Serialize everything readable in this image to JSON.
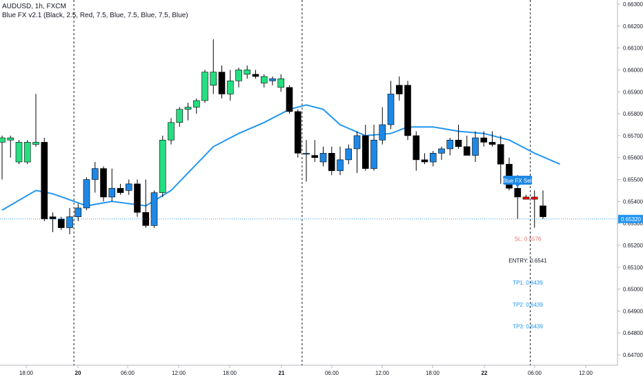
{
  "header": {
    "symbol": "AUDUSD, 1h, FXCM",
    "indicator": "Blue FX v2.1 (Black, 2.5, Red, 7.5, Blue, 7.5, Blue, 7.5, Blue)"
  },
  "chart_data": {
    "type": "candlestick",
    "ylim": [
      0.6465,
      0.6635
    ],
    "y_ticks": [
      "0.66300",
      "0.66200",
      "0.66100",
      "0.66000",
      "0.65900",
      "0.65800",
      "0.65700",
      "0.65600",
      "0.65500",
      "0.65400",
      "0.65300",
      "0.65200",
      "0.65100",
      "0.65000",
      "0.64900",
      "0.64800",
      "0.64700"
    ],
    "x_ticks": [
      "18:00",
      "20",
      "06:00",
      "12:00",
      "18:00",
      "21",
      "06:00",
      "12:00",
      "18:00",
      "22",
      "06:00",
      "12:00"
    ],
    "colors": {
      "black": "#000000",
      "blue": "#1e88e5",
      "green": "#26de81",
      "red": "#ff0000",
      "ma": "#2196f3",
      "price_line": "#2196f3",
      "sl": "#e57373",
      "entry": "#131722",
      "tp": "#2196f3"
    },
    "candles": [
      {
        "o": 0.6567,
        "h": 0.657,
        "l": 0.655,
        "c": 0.6569,
        "color": "green"
      },
      {
        "o": 0.6568,
        "h": 0.657,
        "l": 0.656,
        "c": 0.6569,
        "color": "green"
      },
      {
        "o": 0.6558,
        "h": 0.6568,
        "l": 0.6557,
        "c": 0.6567,
        "color": "green"
      },
      {
        "o": 0.6558,
        "h": 0.6568,
        "l": 0.6557,
        "c": 0.6567,
        "color": "green"
      },
      {
        "o": 0.6566,
        "h": 0.6589,
        "l": 0.6565,
        "c": 0.6567,
        "color": "green"
      },
      {
        "o": 0.6567,
        "h": 0.6569,
        "l": 0.6531,
        "c": 0.6532,
        "color": "black"
      },
      {
        "o": 0.6533,
        "h": 0.6535,
        "l": 0.6526,
        "c": 0.6532,
        "color": "black"
      },
      {
        "o": 0.6532,
        "h": 0.6533,
        "l": 0.6527,
        "c": 0.6528,
        "color": "black"
      },
      {
        "o": 0.6528,
        "h": 0.6537,
        "l": 0.6525,
        "c": 0.6533,
        "color": "blue"
      },
      {
        "o": 0.6533,
        "h": 0.6539,
        "l": 0.6531,
        "c": 0.6537,
        "color": "blue"
      },
      {
        "o": 0.6537,
        "h": 0.6551,
        "l": 0.6536,
        "c": 0.655,
        "color": "blue"
      },
      {
        "o": 0.655,
        "h": 0.6558,
        "l": 0.6544,
        "c": 0.6555,
        "color": "blue"
      },
      {
        "o": 0.6555,
        "h": 0.6556,
        "l": 0.654,
        "c": 0.6542,
        "color": "black"
      },
      {
        "o": 0.6542,
        "h": 0.6555,
        "l": 0.654,
        "c": 0.6546,
        "color": "blue"
      },
      {
        "o": 0.6546,
        "h": 0.6548,
        "l": 0.6543,
        "c": 0.6544,
        "color": "black"
      },
      {
        "o": 0.6545,
        "h": 0.655,
        "l": 0.6543,
        "c": 0.6548,
        "color": "blue"
      },
      {
        "o": 0.6548,
        "h": 0.655,
        "l": 0.6533,
        "c": 0.6535,
        "color": "black"
      },
      {
        "o": 0.6535,
        "h": 0.655,
        "l": 0.6528,
        "c": 0.6529,
        "color": "black"
      },
      {
        "o": 0.6529,
        "h": 0.6545,
        "l": 0.6528,
        "c": 0.6544,
        "color": "blue"
      },
      {
        "o": 0.6544,
        "h": 0.657,
        "l": 0.6542,
        "c": 0.6568,
        "color": "green"
      },
      {
        "o": 0.6568,
        "h": 0.6578,
        "l": 0.6566,
        "c": 0.6576,
        "color": "green"
      },
      {
        "o": 0.6576,
        "h": 0.6583,
        "l": 0.6574,
        "c": 0.6582,
        "color": "green"
      },
      {
        "o": 0.6582,
        "h": 0.6585,
        "l": 0.6577,
        "c": 0.6583,
        "color": "green"
      },
      {
        "o": 0.6583,
        "h": 0.6587,
        "l": 0.658,
        "c": 0.6586,
        "color": "green"
      },
      {
        "o": 0.6586,
        "h": 0.66,
        "l": 0.6585,
        "c": 0.6599,
        "color": "green"
      },
      {
        "o": 0.6593,
        "h": 0.6614,
        "l": 0.6589,
        "c": 0.6599,
        "color": "green"
      },
      {
        "o": 0.6599,
        "h": 0.6602,
        "l": 0.6587,
        "c": 0.6589,
        "color": "black"
      },
      {
        "o": 0.6589,
        "h": 0.66,
        "l": 0.6586,
        "c": 0.6595,
        "color": "green"
      },
      {
        "o": 0.6595,
        "h": 0.6601,
        "l": 0.6592,
        "c": 0.66,
        "color": "green"
      },
      {
        "o": 0.66,
        "h": 0.6602,
        "l": 0.6596,
        "c": 0.6598,
        "color": "green"
      },
      {
        "o": 0.6598,
        "h": 0.66,
        "l": 0.6596,
        "c": 0.6597,
        "color": "black"
      },
      {
        "o": 0.6597,
        "h": 0.6598,
        "l": 0.6592,
        "c": 0.6594,
        "color": "green"
      },
      {
        "o": 0.6596,
        "h": 0.6597,
        "l": 0.6593,
        "c": 0.6595,
        "color": "blue"
      },
      {
        "o": 0.6596,
        "h": 0.6598,
        "l": 0.659,
        "c": 0.6592,
        "color": "green"
      },
      {
        "o": 0.6592,
        "h": 0.6593,
        "l": 0.658,
        "c": 0.6581,
        "color": "black"
      },
      {
        "o": 0.6581,
        "h": 0.6582,
        "l": 0.656,
        "c": 0.6562,
        "color": "black"
      },
      {
        "o": 0.6562,
        "h": 0.6568,
        "l": 0.6549,
        "c": 0.6562,
        "color": "blue"
      },
      {
        "o": 0.6561,
        "h": 0.6568,
        "l": 0.6558,
        "c": 0.656,
        "color": "black"
      },
      {
        "o": 0.6558,
        "h": 0.6565,
        "l": 0.6556,
        "c": 0.6562,
        "color": "blue"
      },
      {
        "o": 0.6562,
        "h": 0.6565,
        "l": 0.6552,
        "c": 0.6554,
        "color": "black"
      },
      {
        "o": 0.6554,
        "h": 0.6565,
        "l": 0.6552,
        "c": 0.6559,
        "color": "blue"
      },
      {
        "o": 0.6559,
        "h": 0.6566,
        "l": 0.6557,
        "c": 0.6564,
        "color": "blue"
      },
      {
        "o": 0.6564,
        "h": 0.6572,
        "l": 0.6553,
        "c": 0.657,
        "color": "blue"
      },
      {
        "o": 0.657,
        "h": 0.6575,
        "l": 0.6554,
        "c": 0.6555,
        "color": "black"
      },
      {
        "o": 0.6555,
        "h": 0.6575,
        "l": 0.6554,
        "c": 0.6568,
        "color": "blue"
      },
      {
        "o": 0.6568,
        "h": 0.6583,
        "l": 0.6566,
        "c": 0.6575,
        "color": "blue"
      },
      {
        "o": 0.6575,
        "h": 0.6595,
        "l": 0.6573,
        "c": 0.6589,
        "color": "blue"
      },
      {
        "o": 0.6589,
        "h": 0.6597,
        "l": 0.6586,
        "c": 0.6593,
        "color": "black"
      },
      {
        "o": 0.6593,
        "h": 0.6595,
        "l": 0.6568,
        "c": 0.657,
        "color": "black"
      },
      {
        "o": 0.657,
        "h": 0.6572,
        "l": 0.6554,
        "c": 0.6559,
        "color": "black"
      },
      {
        "o": 0.6559,
        "h": 0.6562,
        "l": 0.6557,
        "c": 0.6558,
        "color": "black"
      },
      {
        "o": 0.6558,
        "h": 0.6563,
        "l": 0.6556,
        "c": 0.6562,
        "color": "blue"
      },
      {
        "o": 0.6562,
        "h": 0.6565,
        "l": 0.6559,
        "c": 0.6564,
        "color": "blue"
      },
      {
        "o": 0.6564,
        "h": 0.6569,
        "l": 0.6561,
        "c": 0.6568,
        "color": "blue"
      },
      {
        "o": 0.6568,
        "h": 0.6575,
        "l": 0.6564,
        "c": 0.6565,
        "color": "black"
      },
      {
        "o": 0.6565,
        "h": 0.657,
        "l": 0.6562,
        "c": 0.6561,
        "color": "black"
      },
      {
        "o": 0.6561,
        "h": 0.6572,
        "l": 0.6558,
        "c": 0.6569,
        "color": "blue"
      },
      {
        "o": 0.6569,
        "h": 0.6572,
        "l": 0.6565,
        "c": 0.6567,
        "color": "black"
      },
      {
        "o": 0.6567,
        "h": 0.6572,
        "l": 0.6565,
        "c": 0.6566,
        "color": "black"
      },
      {
        "o": 0.6566,
        "h": 0.657,
        "l": 0.6548,
        "c": 0.6557,
        "color": "black"
      },
      {
        "o": 0.6557,
        "h": 0.656,
        "l": 0.6545,
        "c": 0.6546,
        "color": "black"
      },
      {
        "o": 0.6546,
        "h": 0.6552,
        "l": 0.6532,
        "c": 0.6542,
        "color": "black"
      },
      {
        "o": 0.6542,
        "h": 0.6543,
        "l": 0.6541,
        "c": 0.6541,
        "color": "red"
      },
      {
        "o": 0.6542,
        "h": 0.6545,
        "l": 0.6528,
        "c": 0.6541,
        "color": "red"
      },
      {
        "o": 0.6538,
        "h": 0.6545,
        "l": 0.6532,
        "c": 0.6533,
        "color": "black"
      }
    ],
    "ma": [
      [
        0,
        0.6536
      ],
      [
        4,
        0.6545
      ],
      [
        6,
        0.65435
      ],
      [
        10,
        0.6538
      ],
      [
        13,
        0.654
      ],
      [
        17,
        0.6538
      ],
      [
        20,
        0.6545
      ],
      [
        23,
        0.6557
      ],
      [
        25,
        0.6565
      ],
      [
        28,
        0.6571
      ],
      [
        31,
        0.6576
      ],
      [
        34,
        0.6582
      ],
      [
        36,
        0.6584
      ],
      [
        38,
        0.6582
      ],
      [
        40,
        0.6575
      ],
      [
        43,
        0.657
      ],
      [
        46,
        0.6571
      ],
      [
        48,
        0.6574
      ],
      [
        51,
        0.6574
      ],
      [
        54,
        0.6572
      ],
      [
        57,
        0.6571
      ],
      [
        60,
        0.6568
      ],
      [
        63,
        0.6562
      ],
      [
        66,
        0.6557
      ]
    ],
    "vlines_after_candle": [
      8,
      35,
      62
    ],
    "price_line": {
      "value": 0.6532,
      "label": "0.65320"
    },
    "signal": {
      "label": "Blue FX Sell",
      "candle": 61
    },
    "levels": [
      {
        "label": "SL: 0.6576",
        "color": "sl",
        "y": 0.6523
      },
      {
        "label": "ENTRY: 0.6541",
        "color": "entry",
        "y": 0.6513
      },
      {
        "label": "TP1: 0.6439",
        "color": "tp",
        "y": 0.6503
      },
      {
        "label": "TP2: 0.6439",
        "color": "tp",
        "y": 0.6493
      },
      {
        "label": "TP3: 0.6439",
        "color": "tp",
        "y": 0.6483
      }
    ]
  }
}
